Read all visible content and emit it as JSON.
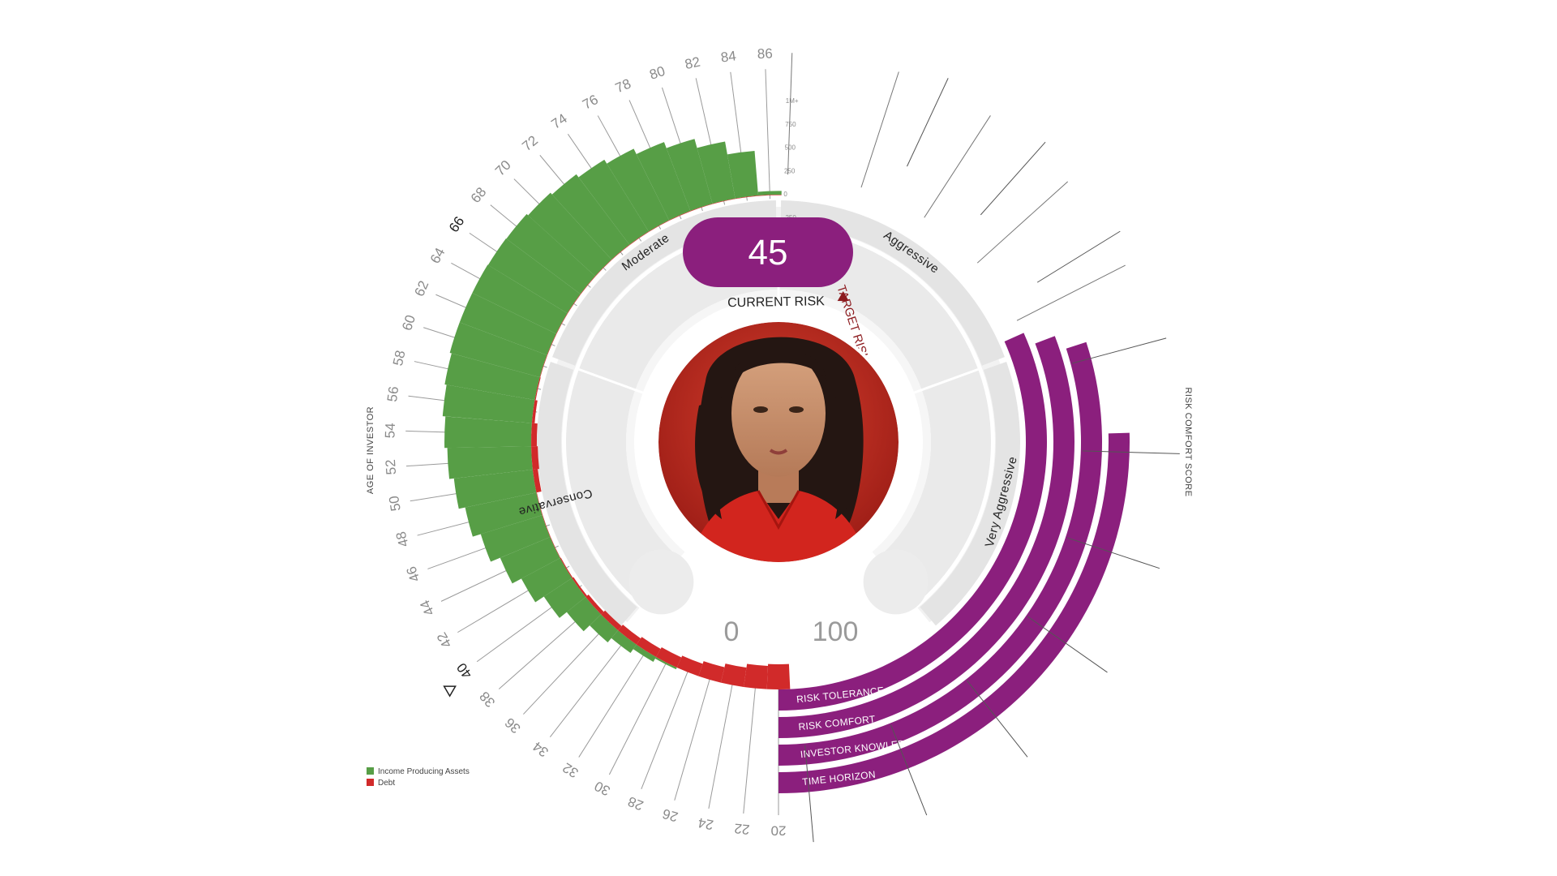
{
  "chart_data": {
    "type": "radial-bar",
    "axes": {
      "age_axis_title": "AGE OF INVESTOR",
      "comfort_axis_title": "RISK COMFORT SCORE"
    },
    "ages": [
      20,
      22,
      24,
      26,
      28,
      30,
      32,
      34,
      36,
      38,
      40,
      42,
      44,
      46,
      48,
      50,
      52,
      54,
      56,
      58,
      60,
      62,
      64,
      66,
      68,
      70,
      72,
      74,
      76,
      78,
      80,
      82,
      84,
      86
    ],
    "highlighted_ages": [
      40,
      66
    ],
    "asset_scale_ticks": [
      "1M+",
      "750",
      "500",
      "250",
      "0",
      "-250"
    ],
    "asset_scale_values": [
      1000,
      750,
      500,
      250,
      0,
      -250
    ],
    "series": [
      {
        "name": "Income Producing Assets",
        "color": "#579e46",
        "values": [
          0,
          0,
          0,
          0,
          0,
          20,
          60,
          110,
          170,
          260,
          360,
          470,
          580,
          690,
          780,
          850,
          900,
          930,
          960,
          980,
          1000,
          1000,
          1000,
          995,
          990,
          970,
          945,
          905,
          855,
          790,
          720,
          620,
          480,
          40
        ]
      },
      {
        "name": "Debt",
        "color": "#d12a2a",
        "values": [
          -270,
          -250,
          -210,
          -170,
          -140,
          -120,
          -100,
          -80,
          -60,
          -40,
          -20,
          -10,
          -5,
          -5,
          -5,
          -55,
          -70,
          -60,
          -30,
          -10,
          -5,
          -5,
          -5,
          -5,
          -5,
          -5,
          -5,
          -5,
          -5,
          -5,
          -5,
          -5,
          -5,
          -5
        ]
      }
    ],
    "risk_zones": [
      "Conservative",
      "Moderate",
      "Aggressive",
      "Very Aggressive"
    ],
    "risk_score": {
      "value": 45,
      "min": 0,
      "max": 100,
      "min_label": "0",
      "max_label": "100"
    },
    "current_risk_label": "CURRENT RISK",
    "target_risk_label": "TARGET RISK",
    "current_risk_value": 45,
    "target_risk_value": 62,
    "comfort_factors": [
      {
        "name": "RISK TOLERANCE",
        "value": 76
      },
      {
        "name": "RISK COMFORT",
        "value": 74
      },
      {
        "name": "INVESTOR KNOWLEDGE",
        "value": 72
      },
      {
        "name": "TIME HORIZON",
        "value": 61
      }
    ],
    "colors": {
      "asset": "#579e46",
      "debt": "#d12a2a",
      "comfort": "#8b1f7d",
      "score_pill": "#8b1f7d",
      "target": "#8c1a1e"
    }
  }
}
